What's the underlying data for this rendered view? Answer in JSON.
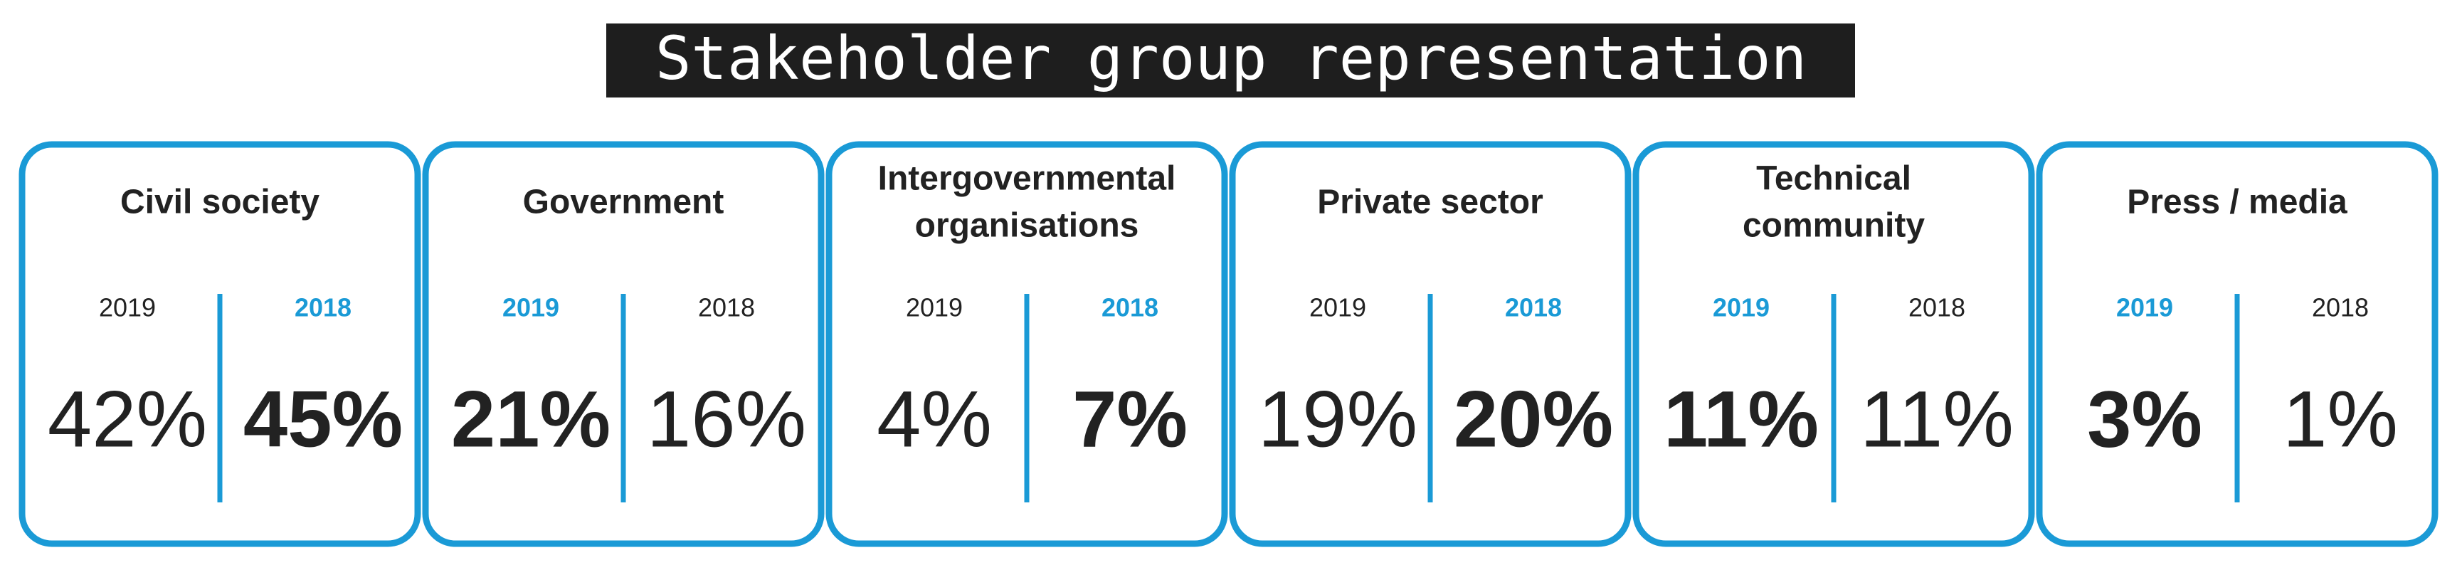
{
  "title": "Stakeholder group representation",
  "groups": [
    {
      "name_lines": [
        "Civil society"
      ],
      "years": [
        {
          "year": "2019",
          "value": "42%"
        },
        {
          "year": "2018",
          "value": "45%"
        }
      ],
      "highlight": 1
    },
    {
      "name_lines": [
        "Government"
      ],
      "years": [
        {
          "year": "2019",
          "value": "21%"
        },
        {
          "year": "2018",
          "value": "16%"
        }
      ],
      "highlight": 0
    },
    {
      "name_lines": [
        "Intergovernmental",
        "organisations"
      ],
      "years": [
        {
          "year": "2019",
          "value": "4%"
        },
        {
          "year": "2018",
          "value": "7%"
        }
      ],
      "highlight": 1
    },
    {
      "name_lines": [
        "Private sector"
      ],
      "years": [
        {
          "year": "2019",
          "value": "19%"
        },
        {
          "year": "2018",
          "value": "20%"
        }
      ],
      "highlight": 1
    },
    {
      "name_lines": [
        "Technical",
        "community"
      ],
      "years": [
        {
          "year": "2019",
          "value": "11%"
        },
        {
          "year": "2018",
          "value": "11%"
        }
      ],
      "highlight": 0
    },
    {
      "name_lines": [
        "Press / media"
      ],
      "years": [
        {
          "year": "2019",
          "value": "3%"
        },
        {
          "year": "2018",
          "value": "1%"
        }
      ],
      "highlight": 0
    }
  ],
  "accent": "#1a9ad6"
}
